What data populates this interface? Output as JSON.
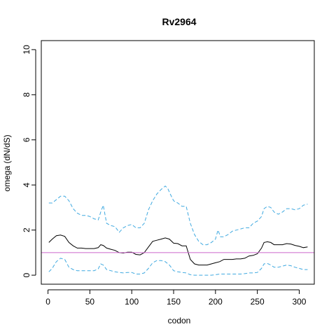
{
  "chart_data": {
    "type": "line",
    "title": "Rv2964",
    "xlabel": "codon",
    "ylabel": "omega (dN/dS)",
    "xlim": [
      -8,
      318
    ],
    "ylim": [
      -0.4,
      10.4
    ],
    "xticks": [
      0,
      50,
      100,
      150,
      200,
      250,
      300
    ],
    "yticks": [
      0,
      2,
      4,
      6,
      8,
      10
    ],
    "grid": false,
    "reference_line": {
      "y": 1,
      "color": "#cc66cc"
    },
    "colors": {
      "estimate": "#000000",
      "bounds": "#3fa9e0",
      "reference": "#cc66cc"
    },
    "series": [
      {
        "style": "solid",
        "color": "#000000",
        "x": [
          1,
          5,
          10,
          15,
          20,
          25,
          30,
          35,
          40,
          45,
          50,
          55,
          60,
          63,
          66,
          70,
          75,
          80,
          85,
          90,
          95,
          100,
          105,
          110,
          115,
          120,
          125,
          130,
          135,
          140,
          145,
          150,
          155,
          160,
          165,
          170,
          175,
          180,
          185,
          190,
          195,
          200,
          205,
          210,
          215,
          220,
          225,
          230,
          235,
          240,
          245,
          250,
          255,
          258,
          262,
          266,
          270,
          275,
          280,
          285,
          290,
          295,
          300,
          305,
          310
        ],
        "y": [
          1.45,
          1.6,
          1.75,
          1.78,
          1.72,
          1.45,
          1.3,
          1.2,
          1.2,
          1.18,
          1.18,
          1.18,
          1.22,
          1.35,
          1.32,
          1.2,
          1.15,
          1.1,
          1.0,
          0.98,
          1.02,
          1.02,
          0.92,
          0.9,
          1.0,
          1.25,
          1.5,
          1.55,
          1.6,
          1.65,
          1.6,
          1.42,
          1.4,
          1.3,
          1.3,
          0.7,
          0.5,
          0.45,
          0.45,
          0.45,
          0.5,
          0.55,
          0.6,
          0.7,
          0.7,
          0.7,
          0.72,
          0.72,
          0.75,
          0.85,
          0.88,
          0.95,
          1.2,
          1.45,
          1.48,
          1.45,
          1.35,
          1.35,
          1.35,
          1.4,
          1.38,
          1.32,
          1.28,
          1.22,
          1.25
        ]
      },
      {
        "style": "dashed",
        "color": "#3fa9e0",
        "x": [
          1,
          5,
          10,
          15,
          20,
          25,
          30,
          35,
          40,
          45,
          50,
          55,
          60,
          63,
          66,
          68,
          70,
          75,
          80,
          85,
          90,
          95,
          100,
          105,
          110,
          115,
          120,
          125,
          130,
          135,
          140,
          143,
          146,
          150,
          155,
          160,
          165,
          170,
          175,
          180,
          185,
          190,
          195,
          200,
          203,
          206,
          210,
          215,
          220,
          225,
          230,
          235,
          240,
          245,
          250,
          255,
          258,
          262,
          266,
          270,
          275,
          280,
          285,
          290,
          295,
          300,
          305,
          310
        ],
        "y": [
          3.2,
          3.2,
          3.35,
          3.5,
          3.5,
          3.3,
          2.95,
          2.75,
          2.65,
          2.65,
          2.6,
          2.5,
          2.45,
          2.8,
          3.1,
          2.7,
          2.3,
          2.2,
          2.15,
          1.9,
          2.1,
          2.2,
          2.25,
          2.1,
          2.1,
          2.3,
          2.9,
          3.3,
          3.6,
          3.8,
          3.95,
          3.85,
          3.6,
          3.3,
          3.2,
          3.05,
          3.05,
          2.3,
          1.8,
          1.5,
          1.35,
          1.35,
          1.45,
          1.6,
          2.0,
          1.7,
          1.7,
          1.8,
          1.95,
          2.0,
          2.05,
          2.1,
          2.1,
          2.3,
          2.4,
          2.6,
          2.95,
          3.05,
          3.0,
          2.8,
          2.7,
          2.8,
          2.95,
          2.95,
          2.9,
          2.95,
          3.1,
          3.15
        ]
      },
      {
        "style": "dashed",
        "color": "#3fa9e0",
        "x": [
          1,
          5,
          10,
          15,
          20,
          25,
          30,
          35,
          40,
          45,
          50,
          55,
          60,
          63,
          66,
          70,
          75,
          80,
          85,
          90,
          95,
          100,
          105,
          110,
          115,
          120,
          125,
          130,
          135,
          140,
          145,
          150,
          155,
          160,
          165,
          170,
          175,
          180,
          185,
          190,
          195,
          200,
          205,
          210,
          215,
          220,
          225,
          230,
          235,
          240,
          245,
          250,
          255,
          258,
          262,
          266,
          270,
          275,
          280,
          285,
          290,
          295,
          300,
          305,
          310
        ],
        "y": [
          0.15,
          0.3,
          0.6,
          0.75,
          0.7,
          0.35,
          0.25,
          0.2,
          0.2,
          0.2,
          0.2,
          0.2,
          0.28,
          0.5,
          0.45,
          0.25,
          0.2,
          0.15,
          0.12,
          0.1,
          0.12,
          0.12,
          0.05,
          0.05,
          0.1,
          0.3,
          0.55,
          0.65,
          0.65,
          0.6,
          0.45,
          0.2,
          0.15,
          0.12,
          0.1,
          0.02,
          0.0,
          0.0,
          0.0,
          0.0,
          0.0,
          0.02,
          0.05,
          0.05,
          0.05,
          0.05,
          0.05,
          0.05,
          0.07,
          0.1,
          0.1,
          0.12,
          0.3,
          0.5,
          0.52,
          0.45,
          0.35,
          0.35,
          0.4,
          0.45,
          0.42,
          0.35,
          0.3,
          0.25,
          0.25
        ]
      }
    ]
  }
}
